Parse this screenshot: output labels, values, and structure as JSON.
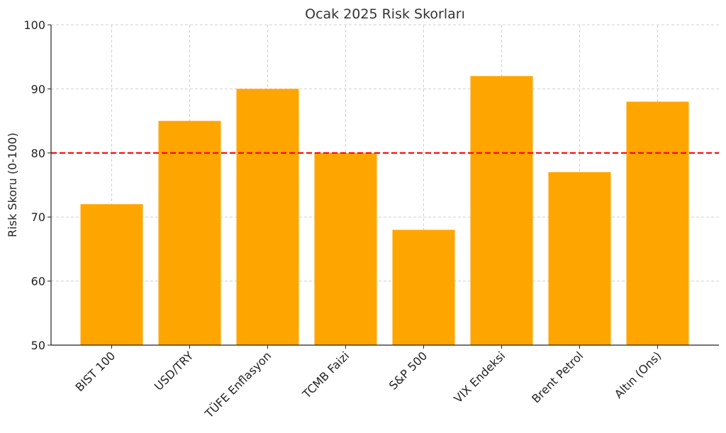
{
  "chart_data": {
    "type": "bar",
    "title": "Ocak 2025 Risk Skorları",
    "xlabel": "",
    "ylabel": "Risk Skoru (0-100)",
    "categories": [
      "BIST 100",
      "USD/TRY",
      "TÜFE Enflasyon",
      "TCMB Faizi",
      "S&P 500",
      "VIX Endeksi",
      "Brent Petrol",
      "Altın (Ons)"
    ],
    "values": [
      72,
      85,
      90,
      80,
      68,
      92,
      77,
      88
    ],
    "ylim": [
      50,
      100
    ],
    "yticks": [
      50,
      60,
      70,
      80,
      90,
      100
    ],
    "threshold": 80,
    "grid": true,
    "colors": {
      "bar": "#FFA500",
      "threshold_line": "#FF0000",
      "grid": "#D0D0D0",
      "axis": "#222222"
    }
  }
}
